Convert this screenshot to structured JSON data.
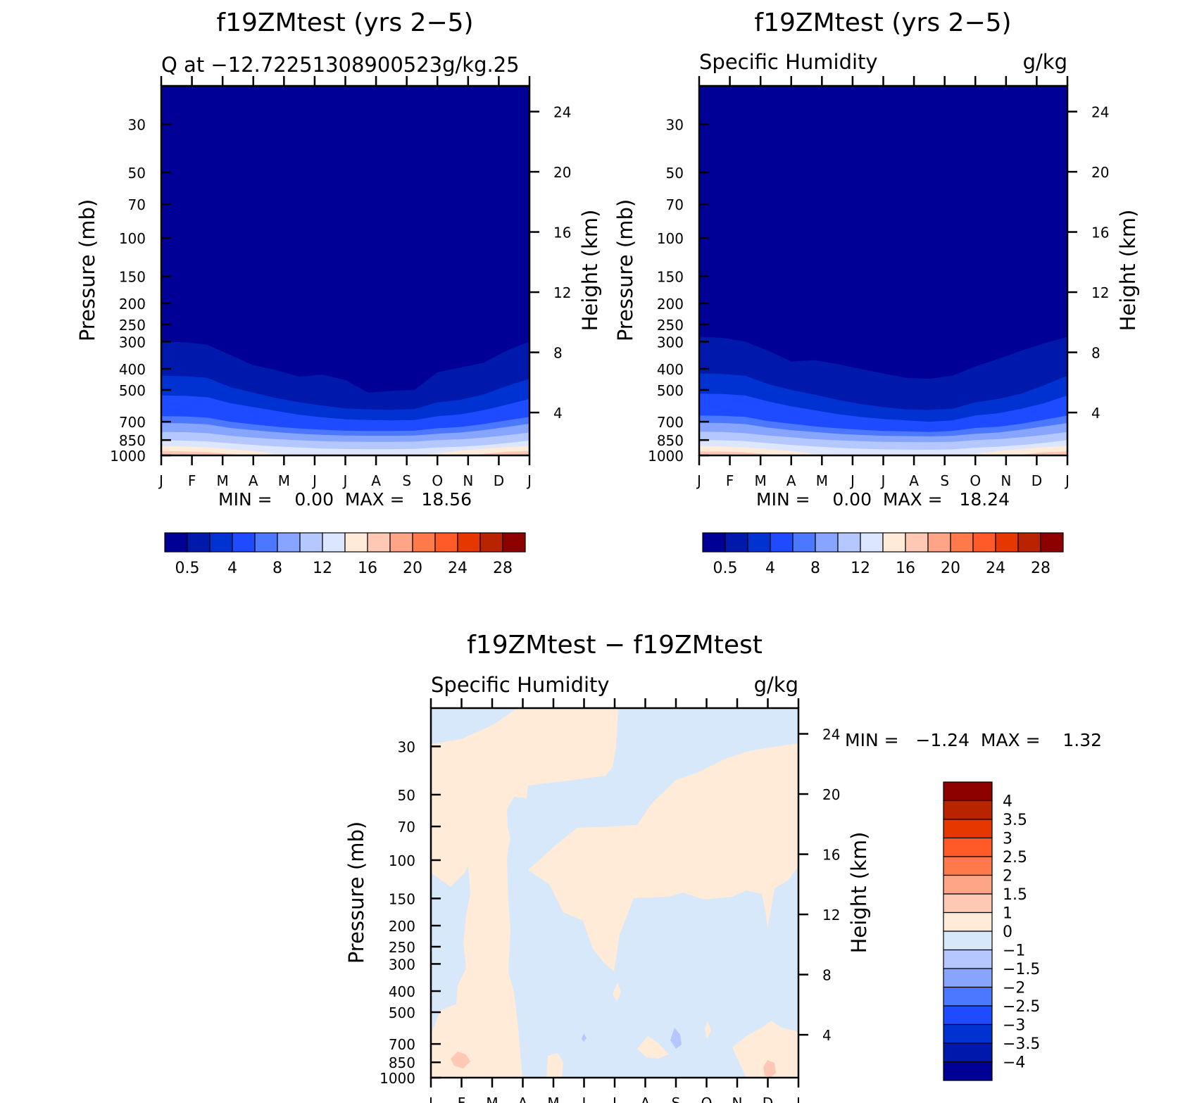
{
  "colors": {
    "seq": [
      "#000096",
      "#0019ad",
      "#0032d1",
      "#1e4bff",
      "#4b78ff",
      "#87a5ff",
      "#b4c8ff",
      "#dce6ff",
      "#ffebd7",
      "#ffc8b4",
      "#ffa587",
      "#ff7a4b",
      "#ff5a28",
      "#e63700",
      "#b92300",
      "#8c0000"
    ],
    "diff": [
      "#000096",
      "#0019ad",
      "#0032d1",
      "#1e4bff",
      "#4b78ff",
      "#87a5ff",
      "#b4c8ff",
      "#d7e8fa",
      "#ffebd7",
      "#ffc8b4",
      "#ffa587",
      "#ff7a4b",
      "#ff5a28",
      "#e63700",
      "#b92300",
      "#8c0000"
    ]
  },
  "chart_data": [
    {
      "type": "heatmap",
      "title": "f19ZMtest (yrs 2−5)",
      "subtitle_left": "Q at −12.72251308900523g/kg.25",
      "subtitle_right": "",
      "ylabel": "Pressure (mb)",
      "ylabel_right": "Height (km)",
      "x_ticks": [
        "J",
        "F",
        "M",
        "A",
        "M",
        "J",
        "J",
        "A",
        "S",
        "O",
        "N",
        "D",
        "J"
      ],
      "y_ticks": [
        "30",
        "50",
        "70",
        "100",
        "150",
        "200",
        "250",
        "300",
        "400",
        "500",
        "700",
        "850",
        "1000"
      ],
      "y_right_ticks": [
        "4",
        "8",
        "12",
        "16",
        "20",
        "24"
      ],
      "ylim": [
        1000,
        20
      ],
      "y_scale": "log",
      "min_max": "MIN =    0.00  MAX =   18.56",
      "min": 0.0,
      "max": 18.56,
      "colorbar_labels": [
        "0.5",
        "4",
        "8",
        "12",
        "16",
        "20",
        "24",
        "28"
      ],
      "contour_levels": [
        0.5,
        2,
        4,
        6,
        8,
        10,
        12,
        14,
        16,
        18,
        20,
        22,
        24,
        26,
        28
      ],
      "boundaries_pressure_mb": [
        {
          "level": 0.5,
          "values": [
            300,
            302,
            310,
            345,
            385,
            405,
            435,
            425,
            450,
            515,
            505,
            500,
            415,
            395,
            375,
            330,
            300
          ]
        },
        {
          "level": 2,
          "values": [
            430,
            432,
            440,
            485,
            515,
            545,
            570,
            590,
            608,
            615,
            618,
            612,
            570,
            555,
            525,
            480,
            445
          ]
        },
        {
          "level": 4,
          "values": [
            530,
            532,
            540,
            575,
            600,
            625,
            650,
            668,
            682,
            688,
            690,
            688,
            660,
            648,
            620,
            585,
            550
          ]
        },
        {
          "level": 6,
          "values": [
            660,
            662,
            670,
            700,
            720,
            738,
            752,
            762,
            770,
            772,
            772,
            770,
            750,
            740,
            718,
            690,
            665
          ]
        },
        {
          "level": 8,
          "values": [
            710,
            712,
            720,
            748,
            765,
            782,
            795,
            804,
            810,
            812,
            812,
            810,
            795,
            785,
            765,
            740,
            715
          ]
        },
        {
          "level": 10,
          "values": [
            780,
            782,
            790,
            812,
            828,
            842,
            852,
            860,
            865,
            866,
            866,
            864,
            850,
            843,
            828,
            808,
            785
          ]
        },
        {
          "level": 12,
          "values": [
            850,
            855,
            862,
            880,
            895,
            910,
            920,
            930,
            935,
            936,
            936,
            934,
            920,
            912,
            898,
            878,
            855
          ]
        },
        {
          "level": 14,
          "values": [
            905,
            910,
            918,
            935,
            955,
            985,
            1000,
            1000,
            1000,
            1000,
            1000,
            1000,
            980,
            950,
            932,
            915,
            905
          ]
        },
        {
          "level": 16,
          "values": [
            955,
            958,
            965,
            985,
            1000,
            1000,
            1000,
            1000,
            1000,
            1000,
            1000,
            1000,
            1000,
            1000,
            985,
            962,
            955
          ]
        },
        {
          "level": 18,
          "values": [
            985,
            988,
            992,
            1000,
            1000,
            1000,
            1000,
            1000,
            1000,
            1000,
            1000,
            1000,
            1000,
            1000,
            1000,
            990,
            985
          ]
        }
      ]
    },
    {
      "type": "heatmap",
      "title": "f19ZMtest (yrs 2−5)",
      "subtitle_left": "Specific Humidity",
      "subtitle_right": "g/kg",
      "ylabel": "Pressure (mb)",
      "ylabel_right": "Height (km)",
      "x_ticks": [
        "J",
        "F",
        "M",
        "A",
        "M",
        "J",
        "J",
        "A",
        "S",
        "O",
        "N",
        "D",
        "J"
      ],
      "y_ticks": [
        "30",
        "50",
        "70",
        "100",
        "150",
        "200",
        "250",
        "300",
        "400",
        "500",
        "700",
        "850",
        "1000"
      ],
      "y_right_ticks": [
        "4",
        "8",
        "12",
        "16",
        "20",
        "24"
      ],
      "ylim": [
        1000,
        20
      ],
      "y_scale": "log",
      "min_max": "MIN =    0.00  MAX =   18.24",
      "min": 0.0,
      "max": 18.24,
      "colorbar_labels": [
        "0.5",
        "4",
        "8",
        "12",
        "16",
        "20",
        "24",
        "28"
      ],
      "contour_levels": [
        0.5,
        2,
        4,
        6,
        8,
        10,
        12,
        14,
        16,
        18,
        20,
        22,
        24,
        26,
        28
      ],
      "boundaries_pressure_mb": [
        {
          "level": 0.5,
          "values": [
            285,
            288,
            300,
            330,
            370,
            365,
            380,
            400,
            420,
            440,
            445,
            430,
            390,
            360,
            330,
            305,
            285
          ]
        },
        {
          "level": 2,
          "values": [
            420,
            422,
            430,
            470,
            500,
            525,
            555,
            580,
            600,
            615,
            618,
            610,
            570,
            550,
            520,
            475,
            430
          ]
        },
        {
          "level": 4,
          "values": [
            520,
            522,
            530,
            565,
            595,
            620,
            645,
            665,
            680,
            690,
            700,
            690,
            655,
            640,
            610,
            575,
            530
          ]
        },
        {
          "level": 6,
          "values": [
            655,
            658,
            665,
            695,
            715,
            735,
            750,
            762,
            772,
            775,
            780,
            772,
            748,
            738,
            715,
            685,
            655
          ]
        },
        {
          "level": 8,
          "values": [
            708,
            710,
            718,
            745,
            765,
            780,
            795,
            805,
            812,
            815,
            818,
            812,
            795,
            785,
            762,
            735,
            710
          ]
        },
        {
          "level": 10,
          "values": [
            778,
            780,
            790,
            810,
            826,
            842,
            852,
            860,
            866,
            868,
            870,
            866,
            850,
            842,
            826,
            805,
            780
          ]
        },
        {
          "level": 12,
          "values": [
            848,
            852,
            860,
            878,
            895,
            910,
            922,
            932,
            938,
            940,
            942,
            938,
            922,
            912,
            896,
            875,
            850
          ]
        },
        {
          "level": 14,
          "values": [
            905,
            910,
            918,
            935,
            955,
            985,
            1000,
            1000,
            1000,
            1000,
            1000,
            1000,
            985,
            955,
            935,
            915,
            905
          ]
        },
        {
          "level": 16,
          "values": [
            958,
            960,
            968,
            988,
            1000,
            1000,
            1000,
            1000,
            1000,
            1000,
            1000,
            1000,
            1000,
            1000,
            990,
            968,
            958
          ]
        },
        {
          "level": 18,
          "values": [
            1000,
            1000,
            1000,
            1000,
            1000,
            1000,
            1000,
            1000,
            1000,
            1000,
            1000,
            1000,
            1000,
            1000,
            1000,
            1000,
            1000
          ]
        }
      ]
    },
    {
      "type": "heatmap",
      "title": "f19ZMtest − f19ZMtest",
      "subtitle_left": "Specific Humidity",
      "subtitle_right": "g/kg",
      "ylabel": "Pressure (mb)",
      "ylabel_right": "Height (km)",
      "x_ticks": [
        "J",
        "F",
        "M",
        "A",
        "M",
        "J",
        "J",
        "A",
        "S",
        "O",
        "N",
        "D",
        "J"
      ],
      "y_ticks": [
        "30",
        "50",
        "70",
        "100",
        "150",
        "200",
        "250",
        "300",
        "400",
        "500",
        "700",
        "850",
        "1000"
      ],
      "y_right_ticks": [
        "4",
        "8",
        "12",
        "16",
        "20",
        "24"
      ],
      "ylim": [
        1000,
        20
      ],
      "y_scale": "log",
      "min_max": "MIN =   −1.24  MAX =    1.32",
      "min": -1.24,
      "max": 1.32,
      "colorbar_labels": [
        "4",
        "3.5",
        "3",
        "2.5",
        "2",
        "1.5",
        "1",
        "0",
        "−1",
        "−1.5",
        "−2",
        "−2.5",
        "−3",
        "−3.5",
        "−4"
      ],
      "contour_levels": [
        -4,
        -3.5,
        -3,
        -2.5,
        -2,
        -1.5,
        -1,
        0,
        1,
        1.5,
        2,
        2.5,
        3,
        3.5,
        4
      ]
    }
  ]
}
